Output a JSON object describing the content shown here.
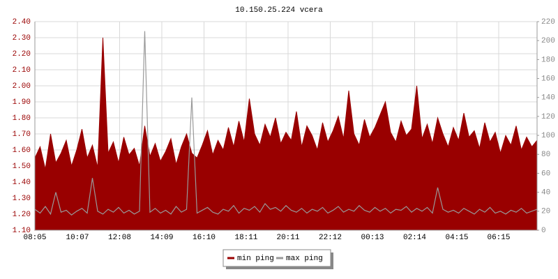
{
  "chart_data": {
    "type": "line",
    "title": "10.150.25.224 vcera",
    "x": [
      0,
      15,
      30,
      45,
      60,
      75,
      90,
      105,
      120,
      135,
      150,
      165,
      180,
      195,
      210,
      225,
      240,
      255,
      270,
      285,
      300,
      315,
      330,
      345,
      360,
      375,
      390,
      405,
      420,
      435,
      450,
      465,
      480,
      495,
      510,
      525,
      540,
      555,
      570,
      585,
      600,
      615,
      630,
      645,
      660,
      675,
      690,
      705,
      720,
      735,
      750,
      765,
      780,
      795,
      810,
      825,
      840,
      855,
      870,
      885,
      900,
      915,
      930,
      945,
      960,
      975,
      990,
      1005,
      1020,
      1035,
      1050,
      1065,
      1080,
      1095,
      1110,
      1125,
      1140,
      1155,
      1170,
      1185,
      1200,
      1215,
      1230,
      1245,
      1260,
      1275,
      1290,
      1305,
      1320,
      1335,
      1350,
      1365,
      1380,
      1395,
      1410,
      1425,
      1440
    ],
    "series": [
      {
        "name": "min ping",
        "color": "#990000",
        "axis": "y",
        "values": [
          1.55,
          1.62,
          1.48,
          1.7,
          1.52,
          1.58,
          1.66,
          1.5,
          1.6,
          1.73,
          1.55,
          1.63,
          1.49,
          2.3,
          1.58,
          1.65,
          1.52,
          1.68,
          1.57,
          1.61,
          1.5,
          1.75,
          1.56,
          1.64,
          1.53,
          1.59,
          1.67,
          1.51,
          1.62,
          1.7,
          1.58,
          1.55,
          1.63,
          1.72,
          1.57,
          1.66,
          1.6,
          1.74,
          1.62,
          1.78,
          1.65,
          1.92,
          1.7,
          1.63,
          1.76,
          1.68,
          1.8,
          1.64,
          1.71,
          1.66,
          1.84,
          1.62,
          1.75,
          1.69,
          1.6,
          1.77,
          1.65,
          1.72,
          1.81,
          1.67,
          1.97,
          1.7,
          1.63,
          1.79,
          1.68,
          1.74,
          1.82,
          1.9,
          1.71,
          1.65,
          1.78,
          1.69,
          1.73,
          2.0,
          1.67,
          1.76,
          1.64,
          1.8,
          1.7,
          1.62,
          1.74,
          1.66,
          1.83,
          1.68,
          1.72,
          1.61,
          1.77,
          1.65,
          1.71,
          1.58,
          1.69,
          1.63,
          1.75,
          1.6,
          1.68,
          1.62,
          1.66
        ]
      },
      {
        "name": "max ping",
        "color": "#999999",
        "axis": "y2",
        "values": [
          22,
          18,
          25,
          17,
          40,
          19,
          21,
          16,
          20,
          23,
          18,
          55,
          20,
          17,
          22,
          19,
          24,
          18,
          21,
          17,
          20,
          210,
          19,
          23,
          18,
          21,
          17,
          25,
          19,
          22,
          140,
          18,
          21,
          24,
          19,
          17,
          22,
          20,
          26,
          18,
          23,
          21,
          25,
          19,
          28,
          22,
          24,
          20,
          26,
          21,
          19,
          23,
          18,
          22,
          20,
          24,
          18,
          21,
          25,
          19,
          22,
          20,
          26,
          21,
          19,
          24,
          20,
          23,
          18,
          22,
          21,
          25,
          19,
          23,
          20,
          24,
          18,
          45,
          22,
          19,
          21,
          18,
          23,
          20,
          17,
          22,
          19,
          24,
          18,
          20,
          17,
          21,
          19,
          23,
          18,
          20,
          22
        ]
      }
    ],
    "xlim": [
      0,
      1440
    ],
    "xticks": [
      {
        "value": 0,
        "label": "08:05"
      },
      {
        "value": 122,
        "label": "10:07"
      },
      {
        "value": 243,
        "label": "12:08"
      },
      {
        "value": 364,
        "label": "14:09"
      },
      {
        "value": 485,
        "label": "16:10"
      },
      {
        "value": 606,
        "label": "18:11"
      },
      {
        "value": 726,
        "label": "20:11"
      },
      {
        "value": 847,
        "label": "22:12"
      },
      {
        "value": 968,
        "label": "00:13"
      },
      {
        "value": 1089,
        "label": "02:14"
      },
      {
        "value": 1210,
        "label": "04:15"
      },
      {
        "value": 1330,
        "label": "06:15"
      }
    ],
    "ylim": [
      1.1,
      2.4
    ],
    "yticks": [
      {
        "value": 1.1,
        "label": "1.10"
      },
      {
        "value": 1.2,
        "label": "1.20"
      },
      {
        "value": 1.3,
        "label": "1.30"
      },
      {
        "value": 1.4,
        "label": "1.40"
      },
      {
        "value": 1.5,
        "label": "1.50"
      },
      {
        "value": 1.6,
        "label": "1.60"
      },
      {
        "value": 1.7,
        "label": "1.70"
      },
      {
        "value": 1.8,
        "label": "1.80"
      },
      {
        "value": 1.9,
        "label": "1.90"
      },
      {
        "value": 2.0,
        "label": "2.00"
      },
      {
        "value": 2.1,
        "label": "2.10"
      },
      {
        "value": 2.2,
        "label": "2.20"
      },
      {
        "value": 2.3,
        "label": "2.30"
      },
      {
        "value": 2.4,
        "label": "2.40"
      }
    ],
    "y2lim": [
      0,
      220
    ],
    "y2ticks": [
      0,
      20,
      40,
      60,
      80,
      100,
      120,
      140,
      160,
      180,
      200,
      220
    ],
    "grid": true,
    "legend": "bottom"
  }
}
